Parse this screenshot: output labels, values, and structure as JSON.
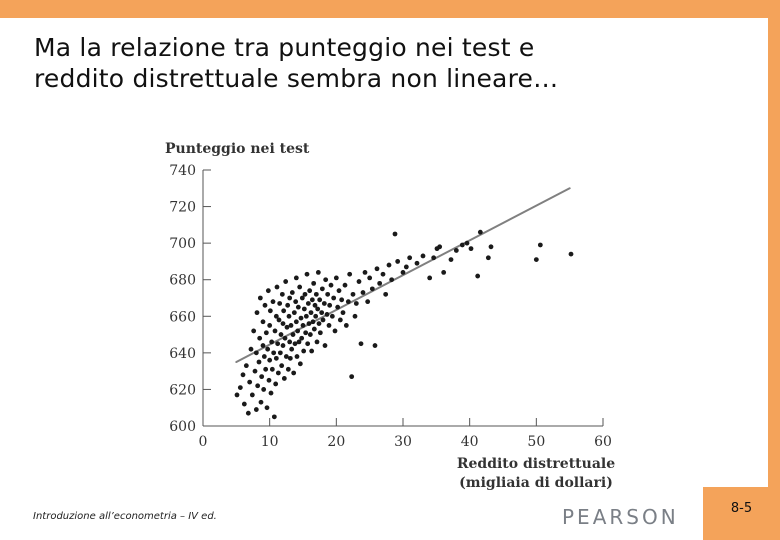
{
  "slide": {
    "title_lines": [
      "Ma la relazione tra punteggio nei test e",
      "reddito distrettuale sembra non lineare…"
    ],
    "footer": "Introduzione all’econometria – IV ed.",
    "publisher": "PEARSON",
    "page_number": "8-5"
  },
  "colors": {
    "frame": "#f4a35a",
    "points": "#1a1a1a",
    "fit_line": "#808080"
  },
  "chart_data": {
    "type": "scatter",
    "title": "Punteggio nei test",
    "xlabel_lines": [
      "Reddito distrettuale",
      "(migliaia di dollari)"
    ],
    "ylabel": "",
    "xlim": [
      0,
      60
    ],
    "ylim": [
      600,
      740
    ],
    "x_ticks": [
      0,
      10,
      20,
      30,
      40,
      50,
      60
    ],
    "y_ticks": [
      600,
      620,
      640,
      660,
      680,
      700,
      720,
      740
    ],
    "grid": false,
    "fit_line": {
      "x": [
        5,
        55
      ],
      "y": [
        635,
        730
      ]
    },
    "points": [
      [
        5.1,
        617
      ],
      [
        5.6,
        621
      ],
      [
        6.0,
        628
      ],
      [
        6.2,
        612
      ],
      [
        6.5,
        633
      ],
      [
        6.8,
        607
      ],
      [
        7.0,
        624
      ],
      [
        7.2,
        642
      ],
      [
        7.4,
        617
      ],
      [
        7.6,
        652
      ],
      [
        7.8,
        630
      ],
      [
        8.0,
        609
      ],
      [
        8.0,
        640
      ],
      [
        8.1,
        662
      ],
      [
        8.2,
        622
      ],
      [
        8.4,
        635
      ],
      [
        8.5,
        648
      ],
      [
        8.6,
        670
      ],
      [
        8.7,
        613
      ],
      [
        8.8,
        627
      ],
      [
        9.0,
        644
      ],
      [
        9.0,
        657
      ],
      [
        9.1,
        620
      ],
      [
        9.2,
        638
      ],
      [
        9.3,
        666
      ],
      [
        9.4,
        631
      ],
      [
        9.5,
        651
      ],
      [
        9.6,
        610
      ],
      [
        9.7,
        642
      ],
      [
        9.8,
        674
      ],
      [
        9.9,
        625
      ],
      [
        10.0,
        636
      ],
      [
        10.0,
        655
      ],
      [
        10.1,
        663
      ],
      [
        10.2,
        618
      ],
      [
        10.3,
        646
      ],
      [
        10.4,
        631
      ],
      [
        10.5,
        668
      ],
      [
        10.6,
        640
      ],
      [
        10.7,
        605
      ],
      [
        10.8,
        652
      ],
      [
        10.9,
        623
      ],
      [
        11.0,
        660
      ],
      [
        11.0,
        637
      ],
      [
        11.1,
        676
      ],
      [
        11.2,
        645
      ],
      [
        11.3,
        629
      ],
      [
        11.4,
        658
      ],
      [
        11.5,
        667
      ],
      [
        11.6,
        640
      ],
      [
        11.7,
        650
      ],
      [
        11.8,
        633
      ],
      [
        11.9,
        672
      ],
      [
        12.0,
        656
      ],
      [
        12.0,
        644
      ],
      [
        12.1,
        663
      ],
      [
        12.2,
        626
      ],
      [
        12.3,
        648
      ],
      [
        12.4,
        679
      ],
      [
        12.5,
        638
      ],
      [
        12.6,
        654
      ],
      [
        12.7,
        666
      ],
      [
        12.8,
        631
      ],
      [
        12.9,
        660
      ],
      [
        13.0,
        646
      ],
      [
        13.0,
        670
      ],
      [
        13.1,
        637
      ],
      [
        13.2,
        655
      ],
      [
        13.3,
        642
      ],
      [
        13.4,
        673
      ],
      [
        13.5,
        650
      ],
      [
        13.6,
        629
      ],
      [
        13.7,
        662
      ],
      [
        13.8,
        645
      ],
      [
        13.9,
        668
      ],
      [
        14.0,
        657
      ],
      [
        14.0,
        681
      ],
      [
        14.1,
        638
      ],
      [
        14.2,
        652
      ],
      [
        14.3,
        665
      ],
      [
        14.4,
        646
      ],
      [
        14.5,
        676
      ],
      [
        14.6,
        634
      ],
      [
        14.7,
        659
      ],
      [
        14.8,
        648
      ],
      [
        14.9,
        670
      ],
      [
        15.0,
        655
      ],
      [
        15.1,
        641
      ],
      [
        15.2,
        664
      ],
      [
        15.3,
        672
      ],
      [
        15.4,
        651
      ],
      [
        15.5,
        660
      ],
      [
        15.6,
        683
      ],
      [
        15.7,
        645
      ],
      [
        15.8,
        667
      ],
      [
        15.9,
        656
      ],
      [
        16.0,
        674
      ],
      [
        16.1,
        650
      ],
      [
        16.2,
        662
      ],
      [
        16.3,
        641
      ],
      [
        16.4,
        669
      ],
      [
        16.5,
        657
      ],
      [
        16.6,
        678
      ],
      [
        16.7,
        653
      ],
      [
        16.8,
        666
      ],
      [
        16.9,
        660
      ],
      [
        17.0,
        672
      ],
      [
        17.1,
        646
      ],
      [
        17.2,
        664
      ],
      [
        17.3,
        684
      ],
      [
        17.4,
        656
      ],
      [
        17.5,
        669
      ],
      [
        17.6,
        651
      ],
      [
        17.8,
        662
      ],
      [
        17.9,
        675
      ],
      [
        18.0,
        658
      ],
      [
        18.2,
        667
      ],
      [
        18.3,
        644
      ],
      [
        18.4,
        680
      ],
      [
        18.6,
        661
      ],
      [
        18.7,
        672
      ],
      [
        18.9,
        655
      ],
      [
        19.0,
        666
      ],
      [
        19.2,
        677
      ],
      [
        19.4,
        660
      ],
      [
        19.6,
        670
      ],
      [
        19.8,
        652
      ],
      [
        20.0,
        681
      ],
      [
        20.2,
        665
      ],
      [
        20.4,
        674
      ],
      [
        20.6,
        658
      ],
      [
        20.8,
        669
      ],
      [
        21.0,
        662
      ],
      [
        21.3,
        677
      ],
      [
        21.5,
        655
      ],
      [
        21.8,
        668
      ],
      [
        22.0,
        683
      ],
      [
        22.3,
        627
      ],
      [
        22.5,
        672
      ],
      [
        22.8,
        660
      ],
      [
        23.0,
        667
      ],
      [
        23.4,
        679
      ],
      [
        23.7,
        645
      ],
      [
        24.0,
        673
      ],
      [
        24.3,
        684
      ],
      [
        24.7,
        668
      ],
      [
        25.0,
        681
      ],
      [
        25.4,
        675
      ],
      [
        25.8,
        644
      ],
      [
        26.1,
        686
      ],
      [
        26.5,
        678
      ],
      [
        27.0,
        683
      ],
      [
        27.4,
        672
      ],
      [
        27.9,
        688
      ],
      [
        28.3,
        680
      ],
      [
        28.8,
        705
      ],
      [
        29.2,
        690
      ],
      [
        30.0,
        684
      ],
      [
        30.5,
        687
      ],
      [
        31.0,
        692
      ],
      [
        32.1,
        689
      ],
      [
        33.0,
        693
      ],
      [
        34.0,
        681
      ],
      [
        34.6,
        692
      ],
      [
        35.1,
        697
      ],
      [
        35.5,
        698
      ],
      [
        36.1,
        684
      ],
      [
        37.2,
        691
      ],
      [
        38.0,
        696
      ],
      [
        38.9,
        699
      ],
      [
        39.6,
        700
      ],
      [
        40.2,
        697
      ],
      [
        41.2,
        682
      ],
      [
        41.6,
        706
      ],
      [
        42.8,
        692
      ],
      [
        43.2,
        698
      ],
      [
        50.0,
        691
      ],
      [
        50.6,
        699
      ],
      [
        55.2,
        694
      ]
    ]
  }
}
